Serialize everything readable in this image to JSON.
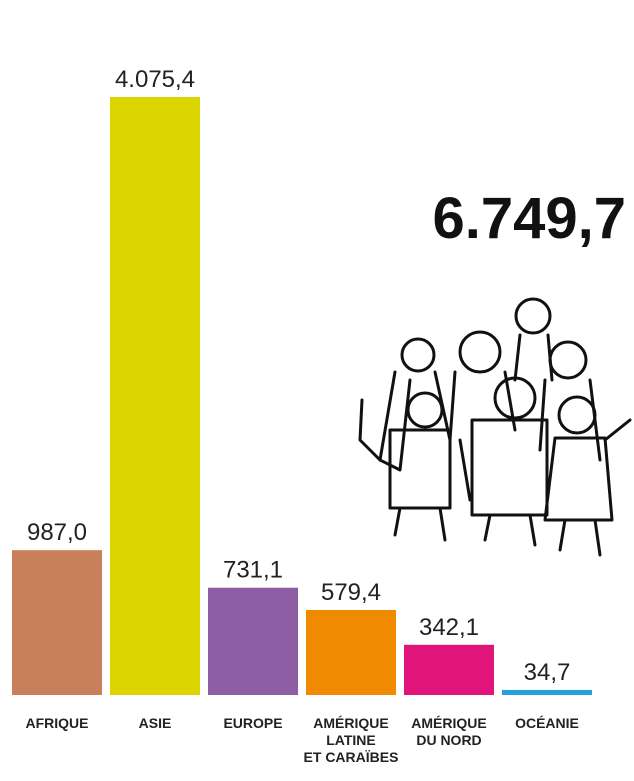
{
  "chart_data": {
    "type": "bar",
    "categories": [
      "AFRIQUE",
      "ASIE",
      "EUROPE",
      "AMÉRIQUE\nLATINE\nET CARAÏBES",
      "AMÉRIQUE\nDU NORD",
      "OCÉANIE"
    ],
    "values": [
      987.0,
      4075.4,
      731.1,
      579.4,
      342.1,
      34.7
    ],
    "value_labels": [
      "987,0",
      "4.075,4",
      "731,1",
      "579,4",
      "342,1",
      "34,7"
    ],
    "colors": [
      "#c8805a",
      "#dcd500",
      "#8d5ea3",
      "#f08a00",
      "#e0147a",
      "#2aa0d8"
    ],
    "ylim": [
      0,
      4100
    ],
    "annotation": "6.749,7"
  }
}
